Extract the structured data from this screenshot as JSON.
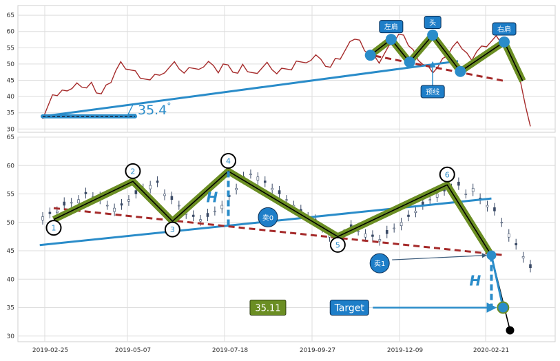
{
  "chart_data": [
    {
      "type": "line",
      "panel": "top",
      "ylim": [
        29,
        68
      ],
      "y_ticks": [
        "30",
        "35",
        "40",
        "45",
        "50",
        "55",
        "60",
        "65"
      ],
      "grid": true,
      "series": [
        {
          "color": "#a52a2a",
          "x": [
            0.0,
            0.01,
            0.02,
            0.03,
            0.04,
            0.05,
            0.06,
            0.07,
            0.08,
            0.09,
            0.1,
            0.11,
            0.12,
            0.13,
            0.14,
            0.15,
            0.16,
            0.17,
            0.18,
            0.19,
            0.2,
            0.21,
            0.22,
            0.23,
            0.24,
            0.25,
            0.26,
            0.27,
            0.28,
            0.29,
            0.3,
            0.31,
            0.32,
            0.33,
            0.34,
            0.35,
            0.36,
            0.37,
            0.38,
            0.39,
            0.4,
            0.41,
            0.42,
            0.43,
            0.44,
            0.45,
            0.46,
            0.47,
            0.48,
            0.49,
            0.5,
            0.51,
            0.52,
            0.53,
            0.54,
            0.55,
            0.56,
            0.57,
            0.58,
            0.59,
            0.6,
            0.61,
            0.62,
            0.63,
            0.64,
            0.65,
            0.66,
            0.67,
            0.68,
            0.69,
            0.7,
            0.71,
            0.72,
            0.73,
            0.74,
            0.75,
            0.76,
            0.77,
            0.78,
            0.79,
            0.8,
            0.81,
            0.82,
            0.83,
            0.84,
            0.85,
            0.86,
            0.87,
            0.88,
            0.89,
            0.9,
            0.91,
            0.92,
            0.93,
            0.94,
            0.95,
            0.96,
            0.97,
            0.98,
            0.99,
            1.0
          ],
          "values": [
            34,
            37,
            40,
            41,
            42,
            41,
            43,
            44,
            42,
            43,
            44,
            42,
            41,
            43,
            45,
            48,
            50,
            49,
            48,
            47,
            46,
            45,
            46,
            47,
            46,
            48,
            49,
            50,
            49,
            47,
            48,
            49,
            48,
            50,
            51,
            49,
            48,
            50,
            49,
            48,
            47,
            49,
            48,
            47,
            48,
            49,
            50,
            49,
            47,
            48,
            49,
            48,
            50,
            51,
            50,
            52,
            53,
            51,
            50,
            49,
            51,
            52,
            54,
            56,
            58,
            57,
            55,
            53,
            52,
            51,
            53,
            55,
            57,
            59,
            58,
            56,
            54,
            52,
            50,
            49,
            48,
            49,
            51,
            53,
            55,
            56,
            55,
            53,
            52,
            54,
            55,
            56,
            57,
            58,
            57,
            55,
            52,
            48,
            44,
            38,
            31
          ]
        }
      ],
      "lines": [
        {
          "name": "support",
          "color": "#2a8cc9",
          "x": [
            0.0,
            0.9
          ],
          "y": [
            33.9,
            50.9
          ]
        },
        {
          "name": "neckline",
          "color": "#a52a2a",
          "x": [
            0.72,
            1.0
          ],
          "y": [
            52.5,
            44.8
          ]
        },
        {
          "name": "baseline",
          "color": "#1a1a2e",
          "x": [
            0.0,
            0.2
          ],
          "y": [
            33.8,
            33.8
          ]
        }
      ],
      "pattern": {
        "points": [
          {
            "x": 0.71,
            "y": 52.7
          },
          {
            "x": 0.755,
            "y": 57.6
          },
          {
            "x": 0.795,
            "y": 50.6
          },
          {
            "x": 0.845,
            "y": 58.9
          },
          {
            "x": 0.905,
            "y": 47.7
          },
          {
            "x": 1.0,
            "y": 56.8
          },
          {
            "x": 1.04,
            "y": 44.8
          }
        ]
      },
      "markers": [
        {
          "x": 0.71,
          "y": 52.7
        },
        {
          "x": 0.755,
          "y": 57.6
        },
        {
          "x": 0.795,
          "y": 50.6
        },
        {
          "x": 0.845,
          "y": 58.9
        },
        {
          "x": 0.905,
          "y": 47.7
        },
        {
          "x": 1.0,
          "y": 56.8
        }
      ],
      "annotations": [
        {
          "text": "左肩",
          "x": 0.755,
          "y": 61.5
        },
        {
          "text": "头",
          "x": 0.845,
          "y": 62.8
        },
        {
          "text": "右肩",
          "x": 1.0,
          "y": 60.8
        },
        {
          "text": "预线",
          "x": 0.845,
          "y": 41.5
        },
        {
          "text": "35.4",
          "x": 0.2,
          "y": 35.8,
          "suffix": "°"
        }
      ]
    },
    {
      "type": "candlestick",
      "panel": "bottom",
      "ylim": [
        29,
        65
      ],
      "y_ticks": [
        "30",
        "35",
        "40",
        "45",
        "50",
        "55",
        "60",
        "65"
      ],
      "x_ticks": [
        "2019-02-25",
        "2019-05-07",
        "2019-07-18",
        "2019-09-27",
        "2019-12-09",
        "2020-02-21"
      ],
      "grid": true,
      "close": [
        51,
        51.5,
        52,
        53,
        53.5,
        54,
        55,
        54.5,
        54,
        53,
        52.5,
        53,
        54,
        55,
        56,
        56.5,
        57,
        55,
        54,
        53,
        52,
        51,
        50.5,
        51,
        52,
        53,
        54.5,
        56,
        57.5,
        58.5,
        58,
        57,
        56,
        55,
        54,
        53,
        52,
        51,
        50,
        49,
        48,
        47,
        48,
        49,
        48.5,
        48,
        47.5,
        47,
        48,
        49,
        50,
        51,
        52,
        53,
        54,
        55,
        55.5,
        56,
        56.5,
        55,
        56,
        54,
        53,
        52,
        50,
        48,
        46,
        44,
        42
      ],
      "pattern": [
        {
          "label": "1",
          "x": 0.0,
          "y": 50.5
        },
        {
          "label": "2",
          "x": 0.17,
          "y": 57.2
        },
        {
          "label": "3",
          "x": 0.255,
          "y": 50.2
        },
        {
          "label": "4",
          "x": 0.375,
          "y": 59.0
        },
        {
          "label": "5",
          "x": 0.61,
          "y": 47.5
        },
        {
          "label": "6",
          "x": 0.845,
          "y": 56.6
        },
        {
          "label": "",
          "x": 0.94,
          "y": 44.2
        }
      ],
      "lines": [
        {
          "name": "resistance",
          "color": "#2a8cc9",
          "x": [
            -0.03,
            0.94
          ],
          "y": [
            46.0,
            54.2
          ]
        },
        {
          "name": "neckline",
          "color": "#a52a2a",
          "x": [
            0.0,
            0.97
          ],
          "y": [
            52.5,
            44.2
          ]
        },
        {
          "name": "drop",
          "color": "#2a8cc9",
          "x": [
            0.94,
            0.965
          ],
          "y": [
            44.2,
            35.0
          ]
        }
      ],
      "height_markers": [
        {
          "label": "H",
          "x": 0.375,
          "y_top": 59.0,
          "y_bottom": 49.5
        },
        {
          "label": "H",
          "x": 0.94,
          "y_top": 44.2,
          "y_bottom": 35.0
        }
      ],
      "labels": [
        {
          "text": "卖0",
          "x": 0.46,
          "y": 50.9
        },
        {
          "text": "卖1",
          "x": 0.7,
          "y": 42.8
        },
        {
          "text": "35.11",
          "x": 0.46,
          "y": 35.0
        },
        {
          "text": "Target",
          "x": 0.635,
          "y": 35.0
        }
      ],
      "end_point": {
        "x": 0.98,
        "y": 31.0
      }
    }
  ]
}
